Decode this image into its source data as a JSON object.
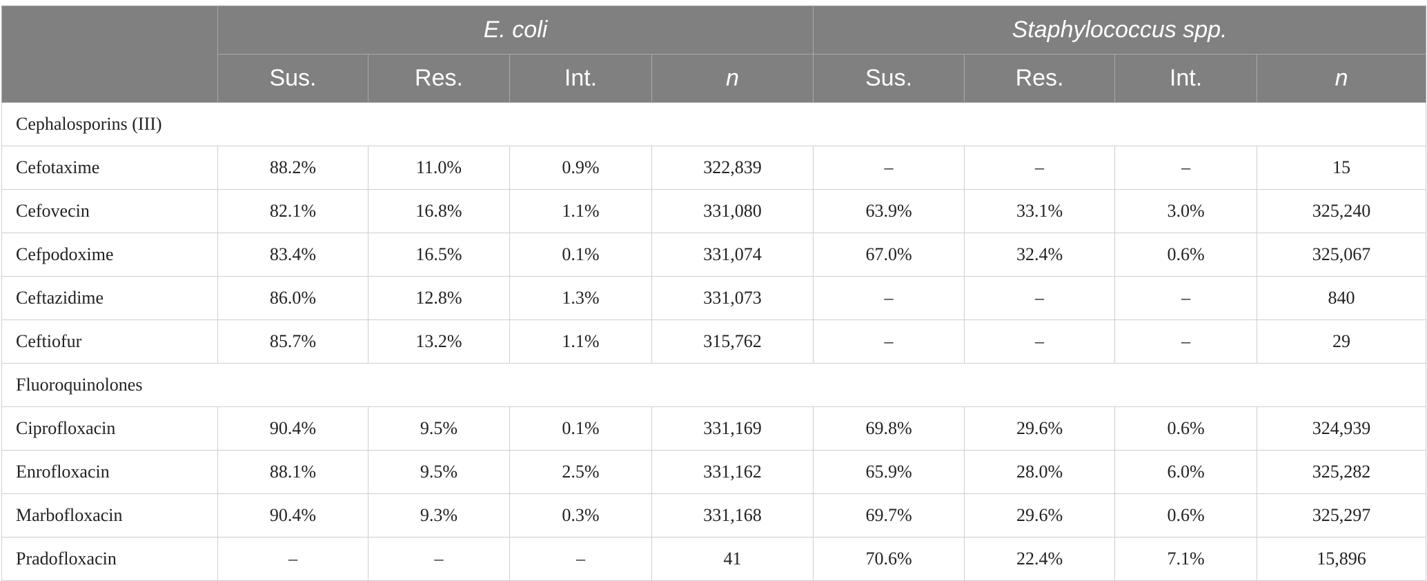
{
  "header": {
    "groups": [
      {
        "label": "E. coli",
        "italic": true
      },
      {
        "label": "Staphylococcus spp.",
        "italic": true
      }
    ],
    "subcolumns": [
      {
        "label": "Sus.",
        "italic": false
      },
      {
        "label": "Res.",
        "italic": false
      },
      {
        "label": "Int.",
        "italic": false
      },
      {
        "label": "n",
        "italic": true
      },
      {
        "label": "Sus.",
        "italic": false
      },
      {
        "label": "Res.",
        "italic": false
      },
      {
        "label": "Int.",
        "italic": false
      },
      {
        "label": "n",
        "italic": true
      }
    ]
  },
  "rows": [
    {
      "type": "section",
      "label": "Cephalosporins (III)"
    },
    {
      "type": "data",
      "name": "Cefotaxime",
      "cells": [
        "88.2%",
        "11.0%",
        "0.9%",
        "322,839",
        "–",
        "–",
        "–",
        "15"
      ]
    },
    {
      "type": "data",
      "name": "Cefovecin",
      "cells": [
        "82.1%",
        "16.8%",
        "1.1%",
        "331,080",
        "63.9%",
        "33.1%",
        "3.0%",
        "325,240"
      ]
    },
    {
      "type": "data",
      "name": "Cefpodoxime",
      "cells": [
        "83.4%",
        "16.5%",
        "0.1%",
        "331,074",
        "67.0%",
        "32.4%",
        "0.6%",
        "325,067"
      ]
    },
    {
      "type": "data",
      "name": "Ceftazidime",
      "cells": [
        "86.0%",
        "12.8%",
        "1.3%",
        "331,073",
        "–",
        "–",
        "–",
        "840"
      ]
    },
    {
      "type": "data",
      "name": "Ceftiofur",
      "cells": [
        "85.7%",
        "13.2%",
        "1.1%",
        "315,762",
        "–",
        "–",
        "–",
        "29"
      ]
    },
    {
      "type": "section",
      "label": "Fluoroquinolones"
    },
    {
      "type": "data",
      "name": "Ciprofloxacin",
      "cells": [
        "90.4%",
        "9.5%",
        "0.1%",
        "331,169",
        "69.8%",
        "29.6%",
        "0.6%",
        "324,939"
      ]
    },
    {
      "type": "data",
      "name": "Enrofloxacin",
      "cells": [
        "88.1%",
        "9.5%",
        "2.5%",
        "331,162",
        "65.9%",
        "28.0%",
        "6.0%",
        "325,282"
      ]
    },
    {
      "type": "data",
      "name": "Marbofloxacin",
      "cells": [
        "90.4%",
        "9.3%",
        "0.3%",
        "331,168",
        "69.7%",
        "29.6%",
        "0.6%",
        "325,297"
      ]
    },
    {
      "type": "data",
      "name": "Pradofloxacin",
      "cells": [
        "–",
        "–",
        "–",
        "41",
        "70.6%",
        "22.4%",
        "7.1%",
        "15,896"
      ]
    }
  ]
}
